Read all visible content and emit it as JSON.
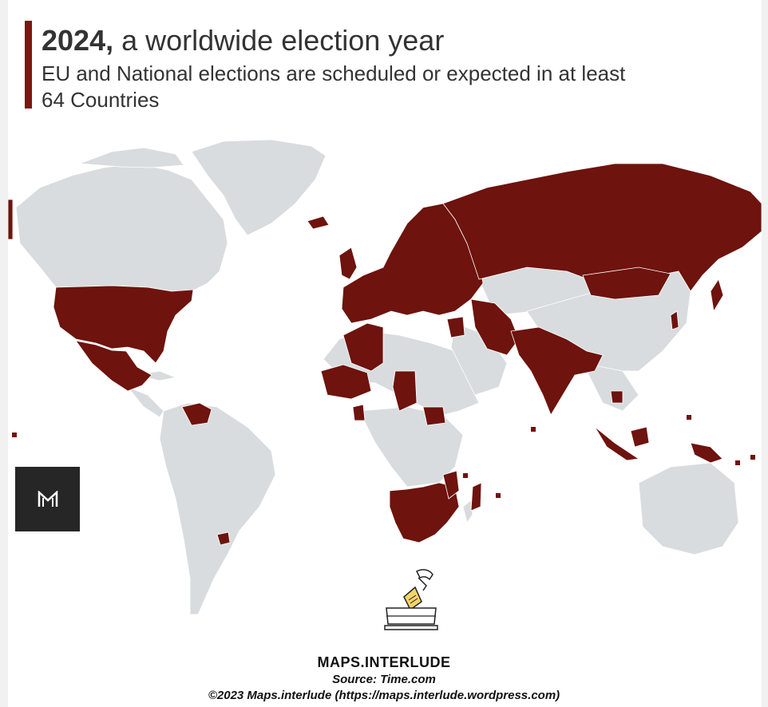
{
  "header": {
    "title_bold": "2024,",
    "title_rest": " a worldwide election year",
    "subtitle_line1": "EU and National elections are scheduled or expected in at least",
    "subtitle_line2": "64 Countries"
  },
  "legend": {
    "election_color": "#6e130d",
    "no_election_color": "#d9dcde",
    "accent_color": "#7a1712"
  },
  "logo": {
    "icon": "maps-interlude-m-logo-icon"
  },
  "illustration": {
    "icon": "ballot-box-icon"
  },
  "footer": {
    "brand": "MAPS.INTERLUDE",
    "source": "Source: Time.com",
    "copyright": "©2023 Maps.interlude (https://maps.interlude.wordpress.com)"
  }
}
